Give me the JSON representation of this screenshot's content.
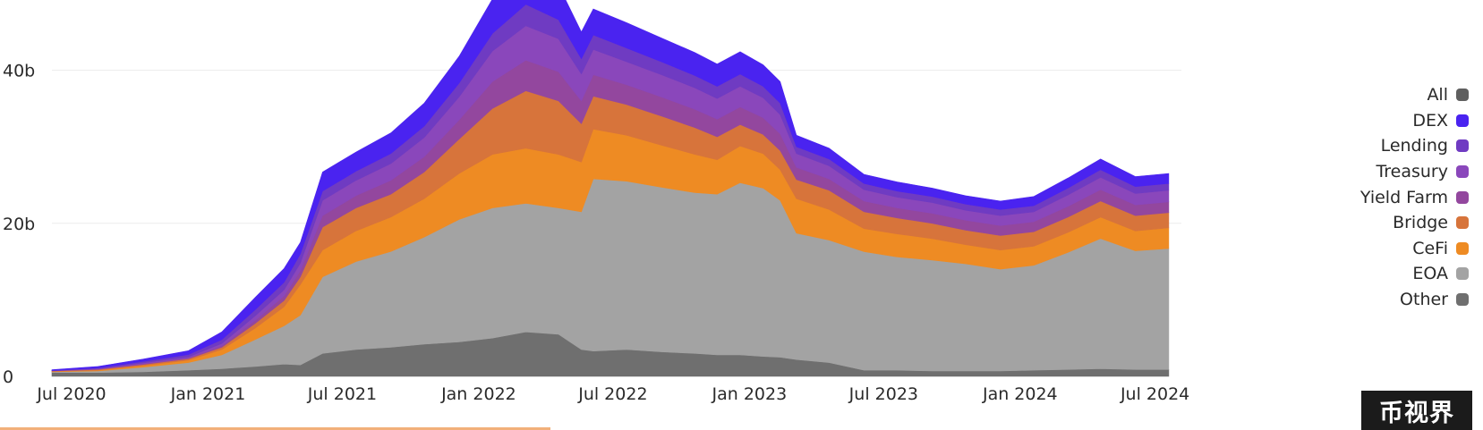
{
  "colors": {
    "All": "#5f5f5f",
    "DEX": "#4a23f0",
    "Lending": "#6f3bc2",
    "Treasury": "#8a47bb",
    "Yield Farm": "#93479e",
    "Bridge": "#d7743b",
    "CeFi": "#ee8b23",
    "EOA": "#a3a3a3",
    "Other": "#6f6f6f"
  },
  "legend": [
    "All",
    "DEX",
    "Lending",
    "Treasury",
    "Yield Farm",
    "Bridge",
    "CeFi",
    "EOA",
    "Other"
  ],
  "watermark": "币视界",
  "chart_data": {
    "type": "area",
    "stacked": true,
    "x": [
      "2020-07-01",
      "2020-09-01",
      "2020-11-01",
      "2021-01-01",
      "2021-02-15",
      "2021-04-01",
      "2021-05-10",
      "2021-06-01",
      "2021-07-01",
      "2021-08-15",
      "2021-10-01",
      "2021-11-15",
      "2022-01-01",
      "2022-02-15",
      "2022-04-01",
      "2022-05-15",
      "2022-06-15",
      "2022-07-01",
      "2022-08-15",
      "2022-10-01",
      "2022-11-15",
      "2022-12-15",
      "2023-01-15",
      "2023-02-15",
      "2023-03-10",
      "2023-04-01",
      "2023-05-15",
      "2023-07-01",
      "2023-08-15",
      "2023-10-01",
      "2023-11-15",
      "2024-01-01",
      "2024-02-15",
      "2024-04-01",
      "2024-05-15",
      "2024-07-01",
      "2024-08-15"
    ],
    "series": [
      {
        "name": "Other",
        "values": [
          0.5,
          0.5,
          0.6,
          0.8,
          1.0,
          1.3,
          1.6,
          1.5,
          3.0,
          3.5,
          3.8,
          4.2,
          4.5,
          5.0,
          5.8,
          5.5,
          3.5,
          3.3,
          3.5,
          3.2,
          3.0,
          2.8,
          2.8,
          2.6,
          2.5,
          2.2,
          1.8,
          0.8,
          0.8,
          0.7,
          0.7,
          0.7,
          0.8,
          0.9,
          1.0,
          0.9,
          0.9
        ]
      },
      {
        "name": "EOA",
        "values": [
          0.1,
          0.2,
          0.6,
          1.0,
          1.8,
          3.5,
          5.0,
          6.5,
          10.0,
          11.5,
          12.5,
          14.0,
          16.0,
          17.0,
          16.8,
          16.5,
          18.0,
          22.5,
          22.0,
          21.5,
          21.0,
          21.0,
          22.5,
          22.0,
          20.5,
          16.5,
          16.0,
          15.5,
          14.8,
          14.5,
          14.0,
          13.3,
          13.7,
          15.3,
          17.0,
          15.5,
          15.8
        ]
      },
      {
        "name": "CeFi",
        "values": [
          0.05,
          0.1,
          0.2,
          0.3,
          0.7,
          1.5,
          2.5,
          4.0,
          3.5,
          4.0,
          4.5,
          5.0,
          6.0,
          7.0,
          7.2,
          7.0,
          6.5,
          6.5,
          6.0,
          5.5,
          5.0,
          4.5,
          4.8,
          4.5,
          4.0,
          4.5,
          4.0,
          3.0,
          3.0,
          2.8,
          2.5,
          2.5,
          2.5,
          2.6,
          2.8,
          2.6,
          2.7
        ]
      },
      {
        "name": "Bridge",
        "values": [
          0.05,
          0.1,
          0.15,
          0.2,
          0.3,
          0.6,
          0.8,
          1.0,
          3.0,
          3.0,
          3.0,
          3.5,
          4.5,
          6.0,
          7.5,
          7.0,
          5.0,
          4.3,
          4.0,
          3.8,
          3.5,
          3.0,
          2.8,
          2.5,
          2.5,
          2.5,
          2.5,
          2.2,
          2.1,
          2.0,
          1.9,
          1.9,
          1.9,
          2.0,
          2.1,
          2.0,
          2.0
        ]
      },
      {
        "name": "Yield Farm",
        "values": [
          0.02,
          0.05,
          0.1,
          0.1,
          0.2,
          0.4,
          0.6,
          0.8,
          1.5,
          1.6,
          1.8,
          2.0,
          2.5,
          3.5,
          4.0,
          3.8,
          3.0,
          2.8,
          2.6,
          2.5,
          2.4,
          2.3,
          2.3,
          2.2,
          2.2,
          1.6,
          1.5,
          1.4,
          1.3,
          1.3,
          1.3,
          1.3,
          1.3,
          1.4,
          1.5,
          1.4,
          1.4
        ]
      },
      {
        "name": "Treasury",
        "values": [
          0.02,
          0.05,
          0.1,
          0.15,
          0.3,
          0.6,
          0.8,
          1.0,
          2.0,
          2.0,
          2.2,
          2.5,
          3.0,
          4.0,
          4.5,
          4.3,
          3.5,
          3.3,
          3.0,
          2.9,
          2.8,
          2.7,
          2.7,
          2.6,
          2.5,
          1.8,
          1.7,
          1.5,
          1.4,
          1.4,
          1.3,
          1.3,
          1.3,
          1.5,
          1.6,
          1.5,
          1.5
        ]
      },
      {
        "name": "Lending",
        "values": [
          0.03,
          0.1,
          0.2,
          0.3,
          0.5,
          0.8,
          1.0,
          1.2,
          1.2,
          1.2,
          1.3,
          1.5,
          1.8,
          2.3,
          2.8,
          2.5,
          2.0,
          1.9,
          1.8,
          1.7,
          1.6,
          1.6,
          1.6,
          1.5,
          1.5,
          0.9,
          0.9,
          0.8,
          0.8,
          0.8,
          0.8,
          0.8,
          0.8,
          0.9,
          1.0,
          0.9,
          0.9
        ]
      },
      {
        "name": "DEX",
        "values": [
          0.1,
          0.2,
          0.3,
          0.5,
          1.0,
          1.6,
          1.8,
          1.5,
          2.5,
          2.5,
          2.7,
          3.0,
          3.5,
          4.5,
          5.0,
          4.5,
          3.5,
          3.4,
          3.3,
          3.1,
          3.0,
          2.9,
          2.9,
          2.8,
          2.8,
          1.5,
          1.4,
          1.2,
          1.2,
          1.1,
          1.1,
          1.1,
          1.2,
          1.3,
          1.4,
          1.3,
          1.3
        ]
      }
    ],
    "xticks": [
      "Jul 2020",
      "Jan 2021",
      "Jul 2021",
      "Jan 2022",
      "Jul 2022",
      "Jan 2023",
      "Jul 2023",
      "Jan 2024",
      "Jul 2024"
    ],
    "ytick_labels": [
      "0",
      "20b",
      "40b"
    ],
    "yticks": [
      0,
      20,
      40
    ],
    "ylim": [
      0,
      48
    ],
    "grid": true,
    "legend_position": "right"
  }
}
